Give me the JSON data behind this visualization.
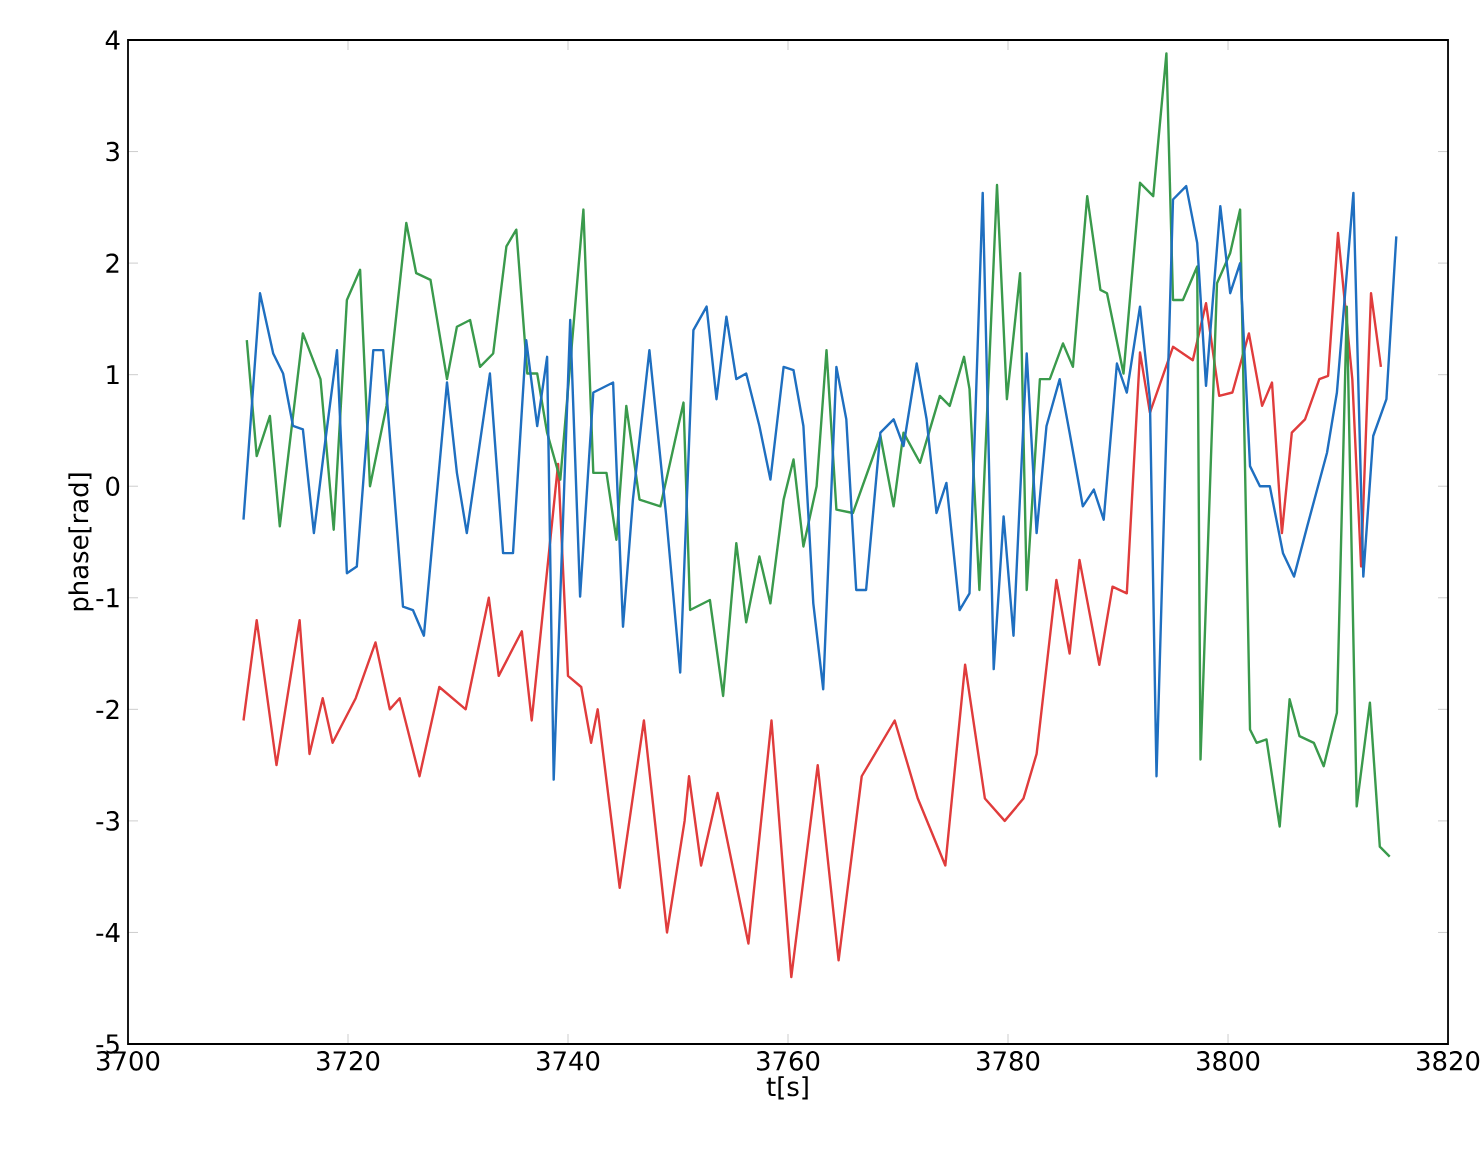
{
  "chart_data": {
    "type": "line",
    "xlabel": "t[s]",
    "ylabel": "phase[rad]",
    "xlim": [
      3700,
      3820
    ],
    "ylim": [
      -5,
      4
    ],
    "xticks": [
      3700,
      3720,
      3740,
      3760,
      3780,
      3800,
      3820
    ],
    "yticks": [
      -5,
      -4,
      -3,
      -2,
      -1,
      0,
      1,
      2,
      3,
      4
    ],
    "grid": false,
    "marker": "none",
    "line_style": "solid",
    "series": [
      {
        "color": "#e03c3c",
        "x": [
          3710.5,
          3711.7,
          3713.5,
          3715.6,
          3716.5,
          3717.7,
          3718.6,
          3720.7,
          3722.5,
          3723.8,
          3724.7,
          3726.5,
          3728.3,
          3730.7,
          3732.8,
          3733.7,
          3735.8,
          3736.7,
          3739.1,
          3740,
          3741.2,
          3742.1,
          3742.7,
          3744.7,
          3746.9,
          3749,
          3750.6,
          3751,
          3752.1,
          3753.6,
          3756.4,
          3758.5,
          3760.3,
          3762.7,
          3764.6,
          3766.7,
          3769.7,
          3771.8,
          3774.3,
          3776.1,
          3777.9,
          3779.7,
          3781.4,
          3782.6,
          3784.4,
          3785.6,
          3786.5,
          3788.3,
          3789.5,
          3790.8,
          3792,
          3792.9,
          3795,
          3796.8,
          3798,
          3799.2,
          3800.4,
          3801.9,
          3803.1,
          3804,
          3804.9,
          3805.8,
          3807,
          3808.3,
          3809.1,
          3810,
          3811.3,
          3812.1,
          3813,
          3813.9
        ],
        "values": [
          -2.1,
          -1.2,
          -2.5,
          -1.2,
          -2.4,
          -1.9,
          -2.3,
          -1.9,
          -1.4,
          -2.0,
          -1.9,
          -2.6,
          -1.8,
          -2.0,
          -1.0,
          -1.7,
          -1.3,
          -2.1,
          0.2,
          -1.7,
          -1.8,
          -2.3,
          -2.0,
          -3.6,
          -2.1,
          -4.0,
          -3.0,
          -2.6,
          -3.4,
          -2.75,
          -4.1,
          -2.1,
          -4.4,
          -2.5,
          -4.25,
          -2.6,
          -2.1,
          -2.8,
          -3.4,
          -1.6,
          -2.8,
          -3.0,
          -2.8,
          -2.4,
          -0.84,
          -1.5,
          -0.66,
          -1.6,
          -0.9,
          -0.96,
          1.2,
          0.66,
          1.25,
          1.13,
          1.64,
          0.81,
          0.84,
          1.37,
          0.72,
          0.93,
          -0.42,
          0.48,
          0.6,
          0.96,
          0.99,
          2.27,
          0.96,
          -0.72,
          1.73,
          1.07
        ]
      },
      {
        "color": "#3a9a4c",
        "x": [
          3710.8,
          3711.7,
          3712.9,
          3713.8,
          3715.9,
          3717.5,
          3718.7,
          3719.9,
          3721.1,
          3722,
          3723.5,
          3725.3,
          3726.2,
          3727.5,
          3729,
          3729.9,
          3731.1,
          3732,
          3733.2,
          3734.4,
          3735.3,
          3736.3,
          3737.2,
          3738.1,
          3739.3,
          3741.4,
          3742.3,
          3743.5,
          3744.4,
          3745.3,
          3746.5,
          3748.4,
          3750.5,
          3751.1,
          3752.9,
          3754.1,
          3755.3,
          3756.2,
          3757.4,
          3758.4,
          3759.6,
          3760.5,
          3761.4,
          3762.6,
          3763.5,
          3764.4,
          3765.9,
          3768.4,
          3769.6,
          3770.5,
          3772,
          3773.8,
          3774.7,
          3776,
          3776.5,
          3777.4,
          3779,
          3779.9,
          3781.1,
          3781.7,
          3782.9,
          3783.8,
          3785,
          3785.9,
          3787.2,
          3788.4,
          3789,
          3790.5,
          3792,
          3793.2,
          3794.4,
          3795,
          3795.9,
          3797.2,
          3797.5,
          3799,
          3800.2,
          3801.1,
          3802,
          3802.6,
          3803.5,
          3804.7,
          3805.6,
          3806.5,
          3807.8,
          3808.7,
          3809.9,
          3810.8,
          3811.7,
          3812.9,
          3813.8,
          3814.7
        ],
        "values": [
          1.31,
          0.27,
          0.63,
          -0.36,
          1.37,
          0.96,
          -0.39,
          1.67,
          1.94,
          0.0,
          0.72,
          2.36,
          1.91,
          1.85,
          0.96,
          1.43,
          1.49,
          1.07,
          1.19,
          2.15,
          2.3,
          1.01,
          1.01,
          0.48,
          0.06,
          2.48,
          0.12,
          0.12,
          -0.48,
          0.72,
          -0.12,
          -0.18,
          0.75,
          -1.11,
          -1.02,
          -1.88,
          -0.51,
          -1.22,
          -0.63,
          -1.05,
          -0.12,
          0.24,
          -0.54,
          0.0,
          1.22,
          -0.21,
          -0.24,
          0.45,
          -0.18,
          0.48,
          0.21,
          0.81,
          0.72,
          1.16,
          0.87,
          -0.93,
          2.7,
          0.78,
          1.91,
          -0.93,
          0.96,
          0.96,
          1.28,
          1.07,
          2.6,
          1.76,
          1.73,
          1.01,
          2.72,
          2.6,
          3.88,
          1.67,
          1.67,
          1.97,
          -2.45,
          1.82,
          2.09,
          2.48,
          -2.18,
          -2.3,
          -2.27,
          -3.05,
          -1.91,
          -2.24,
          -2.3,
          -2.51,
          -2.03,
          1.61,
          -2.87,
          -1.94,
          -3.23,
          -3.32
        ]
      },
      {
        "color": "#1f6fc0",
        "x": [
          3710.5,
          3712,
          3713.2,
          3714.1,
          3715,
          3715.9,
          3716.9,
          3717.8,
          3719,
          3719.9,
          3720.8,
          3722.3,
          3723.2,
          3725,
          3725.9,
          3726.9,
          3729,
          3729.9,
          3730.8,
          3732.9,
          3734.1,
          3735,
          3736.2,
          3737.2,
          3738.1,
          3738.7,
          3740.2,
          3741.1,
          3742.3,
          3744.1,
          3745,
          3745.9,
          3747.4,
          3748.9,
          3750.2,
          3751.4,
          3752.6,
          3753.5,
          3754.4,
          3755.3,
          3756.2,
          3757.4,
          3758.4,
          3759.6,
          3760.5,
          3761.4,
          3762.3,
          3763.2,
          3764.4,
          3765.3,
          3766.2,
          3767.1,
          3768.4,
          3769.6,
          3770.5,
          3771.7,
          3772.6,
          3773.5,
          3774.4,
          3775.6,
          3776.5,
          3777.7,
          3778.7,
          3779.6,
          3780.5,
          3781.7,
          3782.6,
          3783.5,
          3784.7,
          3785.6,
          3786.8,
          3787.8,
          3788.7,
          3789.9,
          3790.8,
          3792,
          3792.9,
          3793.5,
          3795,
          3796.2,
          3797.2,
          3798,
          3799.3,
          3800.2,
          3801.1,
          3802,
          3802.9,
          3803.8,
          3805,
          3806,
          3807.2,
          3809,
          3809.9,
          3811.4,
          3812.3,
          3813.2,
          3814.4,
          3815.3
        ],
        "values": [
          -0.3,
          1.73,
          1.19,
          1.01,
          0.54,
          0.51,
          -0.42,
          0.3,
          1.22,
          -0.78,
          -0.72,
          1.22,
          1.22,
          -1.08,
          -1.11,
          -1.34,
          0.93,
          0.12,
          -0.42,
          1.01,
          -0.6,
          -0.6,
          1.31,
          0.54,
          1.16,
          -2.63,
          1.49,
          -0.99,
          0.84,
          0.93,
          -1.26,
          -0.12,
          1.22,
          -0.24,
          -1.67,
          1.4,
          1.61,
          0.78,
          1.52,
          0.96,
          1.01,
          0.54,
          0.06,
          1.07,
          1.04,
          0.54,
          -1.05,
          -1.82,
          1.07,
          0.6,
          -0.93,
          -0.93,
          0.48,
          0.6,
          0.36,
          1.1,
          0.6,
          -0.24,
          0.03,
          -1.11,
          -0.96,
          2.63,
          -1.64,
          -0.27,
          -1.34,
          1.19,
          -0.42,
          0.54,
          0.96,
          0.48,
          -0.18,
          -0.03,
          -0.3,
          1.1,
          0.84,
          1.61,
          0.78,
          -2.6,
          2.57,
          2.69,
          2.18,
          0.9,
          2.51,
          1.73,
          2.0,
          0.18,
          0.0,
          0.0,
          -0.6,
          -0.81,
          -0.36,
          0.3,
          0.84,
          2.63,
          -0.81,
          0.45,
          0.78,
          2.24
        ]
      }
    ]
  }
}
